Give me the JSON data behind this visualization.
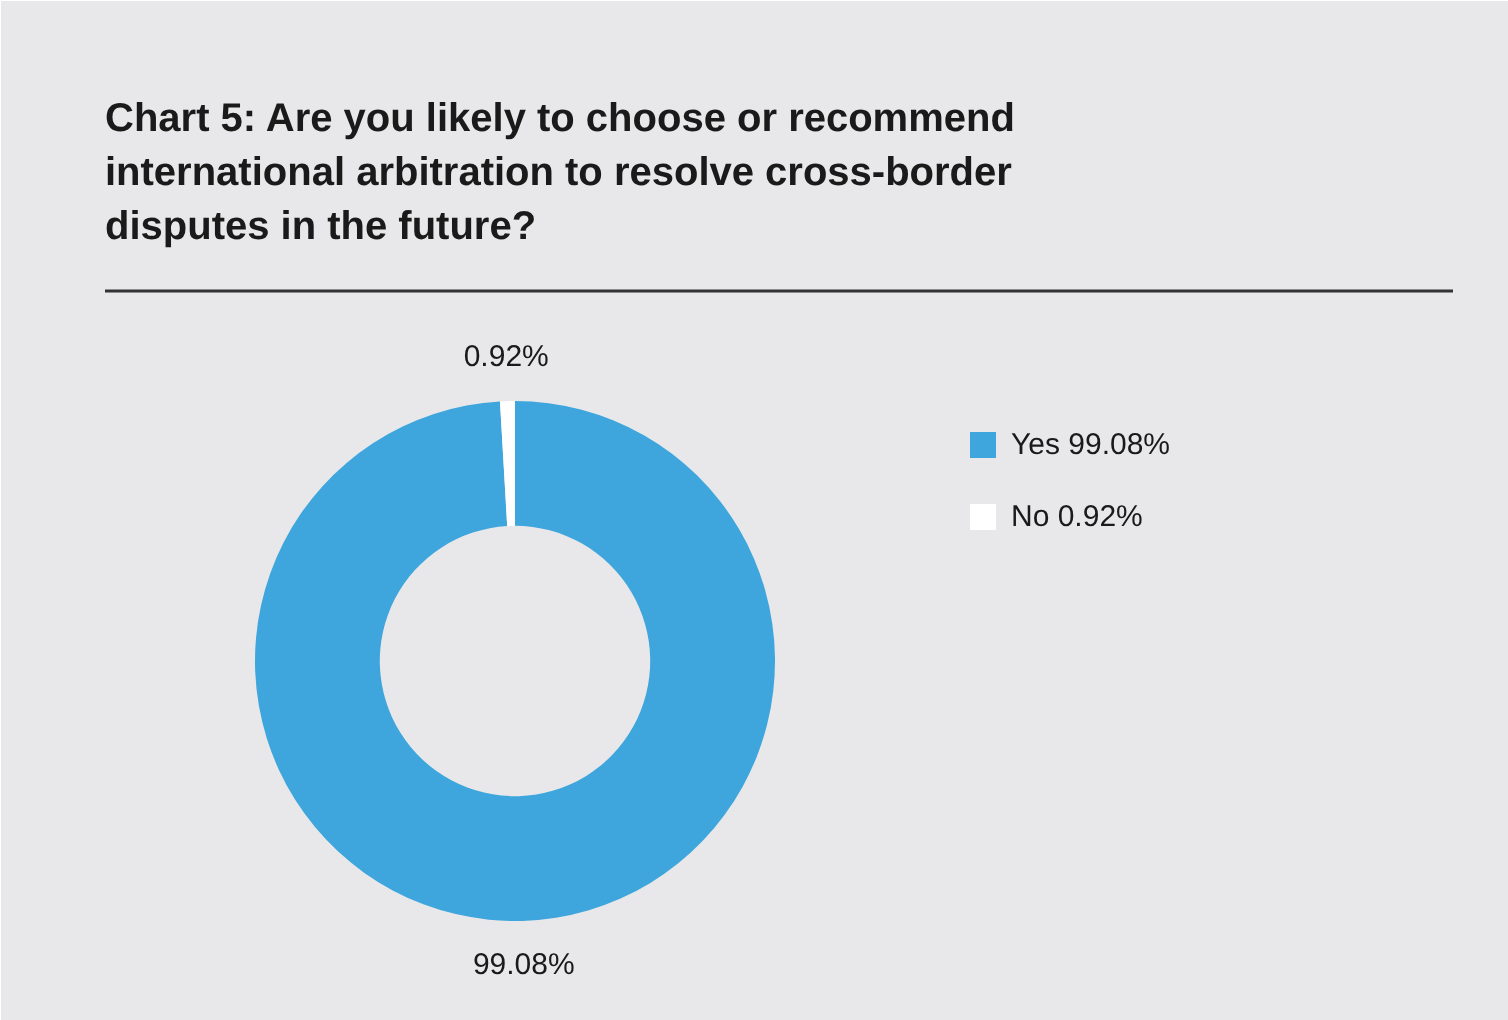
{
  "chart_data": {
    "type": "donut",
    "title": "Chart 5: Are you likely to choose or recommend\ninternational arbitration to resolve cross-border\ndisputes in the future?",
    "categories": [
      "Yes 99.08%",
      "No 0.92%"
    ],
    "values": [
      99.08,
      0.92
    ],
    "colors": [
      "#3ea6dc",
      "#ffffff"
    ],
    "value_labels": [
      "99.08%",
      "0.92%"
    ],
    "legend": "right"
  }
}
